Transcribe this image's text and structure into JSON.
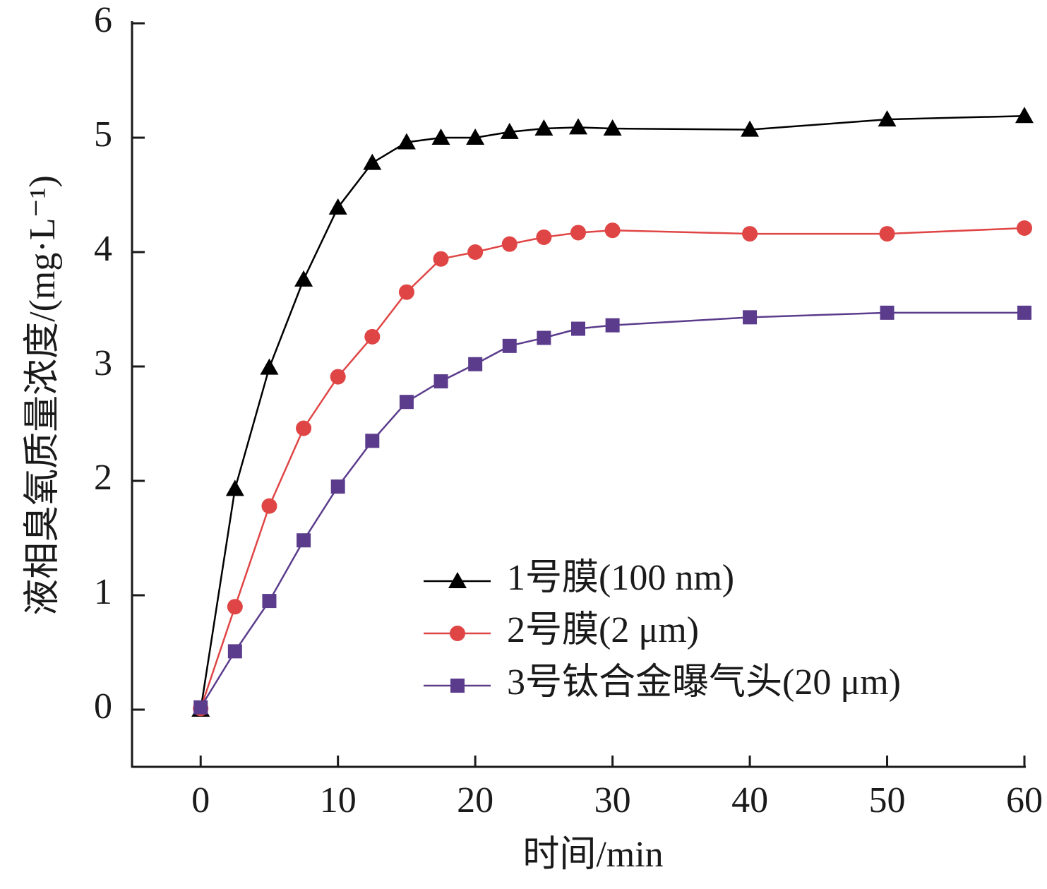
{
  "chart_data": {
    "type": "line",
    "x_label": "时间/min",
    "y_label": "液相臭氧质量浓度/(mg·L⁻¹)",
    "x": [
      0,
      2.5,
      5,
      7.5,
      10,
      12.5,
      15,
      17.5,
      20,
      22.5,
      25,
      27.5,
      30,
      40,
      50,
      60
    ],
    "series": [
      {
        "name": "1号膜(100 nm)",
        "color": "#000000",
        "marker": "triangle",
        "values": [
          0,
          1.93,
          2.99,
          3.76,
          4.39,
          4.78,
          4.96,
          5.0,
          5.0,
          5.05,
          5.08,
          5.09,
          5.08,
          5.07,
          5.16,
          5.19
        ]
      },
      {
        "name": "2号膜(2 μm)",
        "color": "#e04545",
        "marker": "circle",
        "values": [
          0.01,
          0.9,
          1.78,
          2.46,
          2.91,
          3.26,
          3.65,
          3.94,
          4.0,
          4.07,
          4.13,
          4.17,
          4.19,
          4.16,
          4.16,
          4.21
        ]
      },
      {
        "name": "3号钛合金曝气头(20 μm)",
        "color": "#5b3c8c",
        "marker": "square",
        "values": [
          0.02,
          0.51,
          0.95,
          1.48,
          1.95,
          2.35,
          2.69,
          2.87,
          3.02,
          3.18,
          3.25,
          3.33,
          3.36,
          3.43,
          3.47,
          3.47
        ]
      }
    ],
    "xlim": [
      -5,
      60
    ],
    "xticks": [
      0,
      10,
      20,
      30,
      40,
      50,
      60
    ],
    "ylim": [
      -0.5,
      6
    ],
    "yticks": [
      0,
      1,
      2,
      3,
      4,
      5,
      6
    ],
    "legend": "lower center",
    "grid": false
  }
}
